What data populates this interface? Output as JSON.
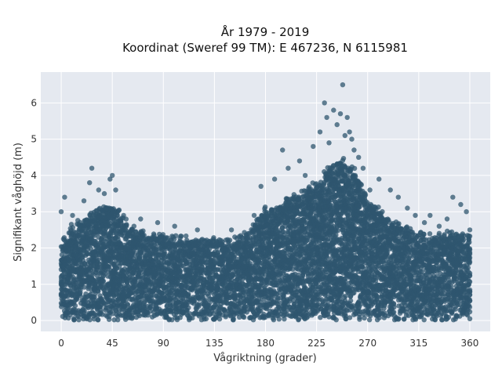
{
  "chart_data": {
    "type": "scatter",
    "title": "År 1979 - 2019",
    "subtitle": "Koordinat (Sweref 99 TM): E 467236, N 6115981",
    "xlabel": "Vågriktning (grader)",
    "ylabel": "Signifikant våghöjd (m)",
    "xlim": [
      -18,
      378
    ],
    "ylim": [
      -0.3,
      6.85
    ],
    "x_ticks": [
      0,
      45,
      90,
      135,
      180,
      225,
      270,
      315,
      360
    ],
    "y_ticks": [
      0,
      1,
      2,
      3,
      4,
      5,
      6
    ],
    "grid": true,
    "marker_color": "#2f566f",
    "background_color": "#e5e9f0",
    "dense_band": {
      "description": "Dense cloud of points from 0 up to envelope at each direction",
      "x": [
        0,
        10,
        20,
        30,
        45,
        60,
        75,
        90,
        105,
        120,
        135,
        150,
        165,
        180,
        195,
        210,
        225,
        240,
        250,
        260,
        270,
        285,
        300,
        315,
        330,
        345,
        360
      ],
      "y_top": [
        2.2,
        2.6,
        2.8,
        3.0,
        3.2,
        2.6,
        2.4,
        2.3,
        2.3,
        2.2,
        2.2,
        2.2,
        2.4,
        3.1,
        3.2,
        3.5,
        3.8,
        4.3,
        4.4,
        4.0,
        3.3,
        2.9,
        2.6,
        2.4,
        2.3,
        2.4,
        2.3
      ]
    },
    "outliers": [
      {
        "x": 3,
        "y": 3.4
      },
      {
        "x": 10,
        "y": 2.9
      },
      {
        "x": 20,
        "y": 3.3
      },
      {
        "x": 25,
        "y": 3.8
      },
      {
        "x": 27,
        "y": 4.2
      },
      {
        "x": 33,
        "y": 3.6
      },
      {
        "x": 38,
        "y": 3.5
      },
      {
        "x": 43,
        "y": 3.9
      },
      {
        "x": 45,
        "y": 4.0
      },
      {
        "x": 48,
        "y": 3.6
      },
      {
        "x": 55,
        "y": 2.9
      },
      {
        "x": 70,
        "y": 2.8
      },
      {
        "x": 85,
        "y": 2.7
      },
      {
        "x": 100,
        "y": 2.6
      },
      {
        "x": 120,
        "y": 2.5
      },
      {
        "x": 150,
        "y": 2.5
      },
      {
        "x": 170,
        "y": 2.9
      },
      {
        "x": 176,
        "y": 3.7
      },
      {
        "x": 188,
        "y": 3.9
      },
      {
        "x": 195,
        "y": 4.7
      },
      {
        "x": 200,
        "y": 4.2
      },
      {
        "x": 210,
        "y": 4.4
      },
      {
        "x": 215,
        "y": 4.0
      },
      {
        "x": 222,
        "y": 4.8
      },
      {
        "x": 228,
        "y": 5.2
      },
      {
        "x": 232,
        "y": 6.0
      },
      {
        "x": 234,
        "y": 5.6
      },
      {
        "x": 236,
        "y": 4.9
      },
      {
        "x": 240,
        "y": 5.8
      },
      {
        "x": 243,
        "y": 5.4
      },
      {
        "x": 246,
        "y": 5.7
      },
      {
        "x": 248,
        "y": 6.5
      },
      {
        "x": 250,
        "y": 5.1
      },
      {
        "x": 252,
        "y": 5.6
      },
      {
        "x": 254,
        "y": 5.2
      },
      {
        "x": 256,
        "y": 5.0
      },
      {
        "x": 258,
        "y": 4.7
      },
      {
        "x": 262,
        "y": 4.5
      },
      {
        "x": 266,
        "y": 4.2
      },
      {
        "x": 272,
        "y": 3.6
      },
      {
        "x": 280,
        "y": 3.9
      },
      {
        "x": 290,
        "y": 3.6
      },
      {
        "x": 297,
        "y": 3.4
      },
      {
        "x": 305,
        "y": 3.1
      },
      {
        "x": 312,
        "y": 2.9
      },
      {
        "x": 320,
        "y": 2.7
      },
      {
        "x": 325,
        "y": 2.9
      },
      {
        "x": 333,
        "y": 2.6
      },
      {
        "x": 340,
        "y": 2.8
      },
      {
        "x": 345,
        "y": 3.4
      },
      {
        "x": 352,
        "y": 3.2
      },
      {
        "x": 357,
        "y": 3.0
      },
      {
        "x": 0,
        "y": 3.0
      },
      {
        "x": 360,
        "y": 2.5
      }
    ]
  }
}
